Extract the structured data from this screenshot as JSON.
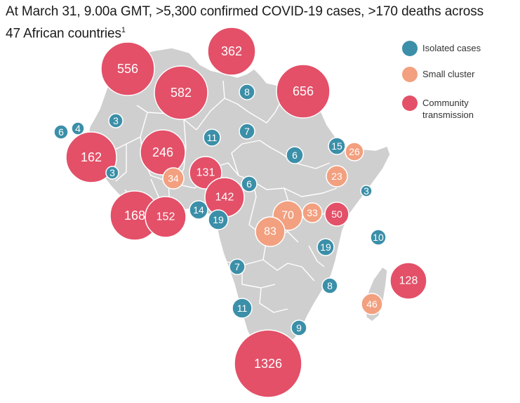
{
  "title": {
    "line1": "At March 31, 9.00a GMT, >5,300 confirmed COVID-19 cases, >170 deaths across",
    "line2": "47 African countries",
    "footnote": "1"
  },
  "legend": [
    {
      "key": "isolated",
      "label": "Isolated cases",
      "color": "#3b8fa8"
    },
    {
      "key": "cluster",
      "label": "Small cluster",
      "color": "#f2a07f"
    },
    {
      "key": "community",
      "label": "Community transmission",
      "color": "#e35068"
    }
  ],
  "colors": {
    "land": "#cfcfcf",
    "border": "#ffffff"
  },
  "markers": [
    {
      "value": "556",
      "category": "community"
    },
    {
      "value": "362",
      "category": "community"
    },
    {
      "value": "582",
      "category": "community"
    },
    {
      "value": "656",
      "category": "community"
    },
    {
      "value": "8",
      "category": "isolated"
    },
    {
      "value": "3",
      "category": "isolated"
    },
    {
      "value": "6",
      "category": "isolated"
    },
    {
      "value": "4",
      "category": "isolated"
    },
    {
      "value": "162",
      "category": "community"
    },
    {
      "value": "246",
      "category": "community"
    },
    {
      "value": "11",
      "category": "isolated"
    },
    {
      "value": "7",
      "category": "isolated"
    },
    {
      "value": "6",
      "category": "isolated"
    },
    {
      "value": "15",
      "category": "isolated"
    },
    {
      "value": "26",
      "category": "cluster"
    },
    {
      "value": "3",
      "category": "isolated"
    },
    {
      "value": "34",
      "category": "cluster"
    },
    {
      "value": "131",
      "category": "community"
    },
    {
      "value": "23",
      "category": "cluster"
    },
    {
      "value": "6",
      "category": "isolated"
    },
    {
      "value": "142",
      "category": "community"
    },
    {
      "value": "3",
      "category": "isolated"
    },
    {
      "value": "168",
      "category": "community"
    },
    {
      "value": "152",
      "category": "community"
    },
    {
      "value": "14",
      "category": "isolated"
    },
    {
      "value": "19",
      "category": "isolated"
    },
    {
      "value": "70",
      "category": "cluster"
    },
    {
      "value": "33",
      "category": "cluster"
    },
    {
      "value": "50",
      "category": "community"
    },
    {
      "value": "83",
      "category": "cluster"
    },
    {
      "value": "10",
      "category": "isolated"
    },
    {
      "value": "19",
      "category": "isolated"
    },
    {
      "value": "7",
      "category": "isolated"
    },
    {
      "value": "8",
      "category": "isolated"
    },
    {
      "value": "128",
      "category": "community"
    },
    {
      "value": "46",
      "category": "cluster"
    },
    {
      "value": "11",
      "category": "isolated"
    },
    {
      "value": "9",
      "category": "isolated"
    },
    {
      "value": "1326",
      "category": "community"
    }
  ]
}
